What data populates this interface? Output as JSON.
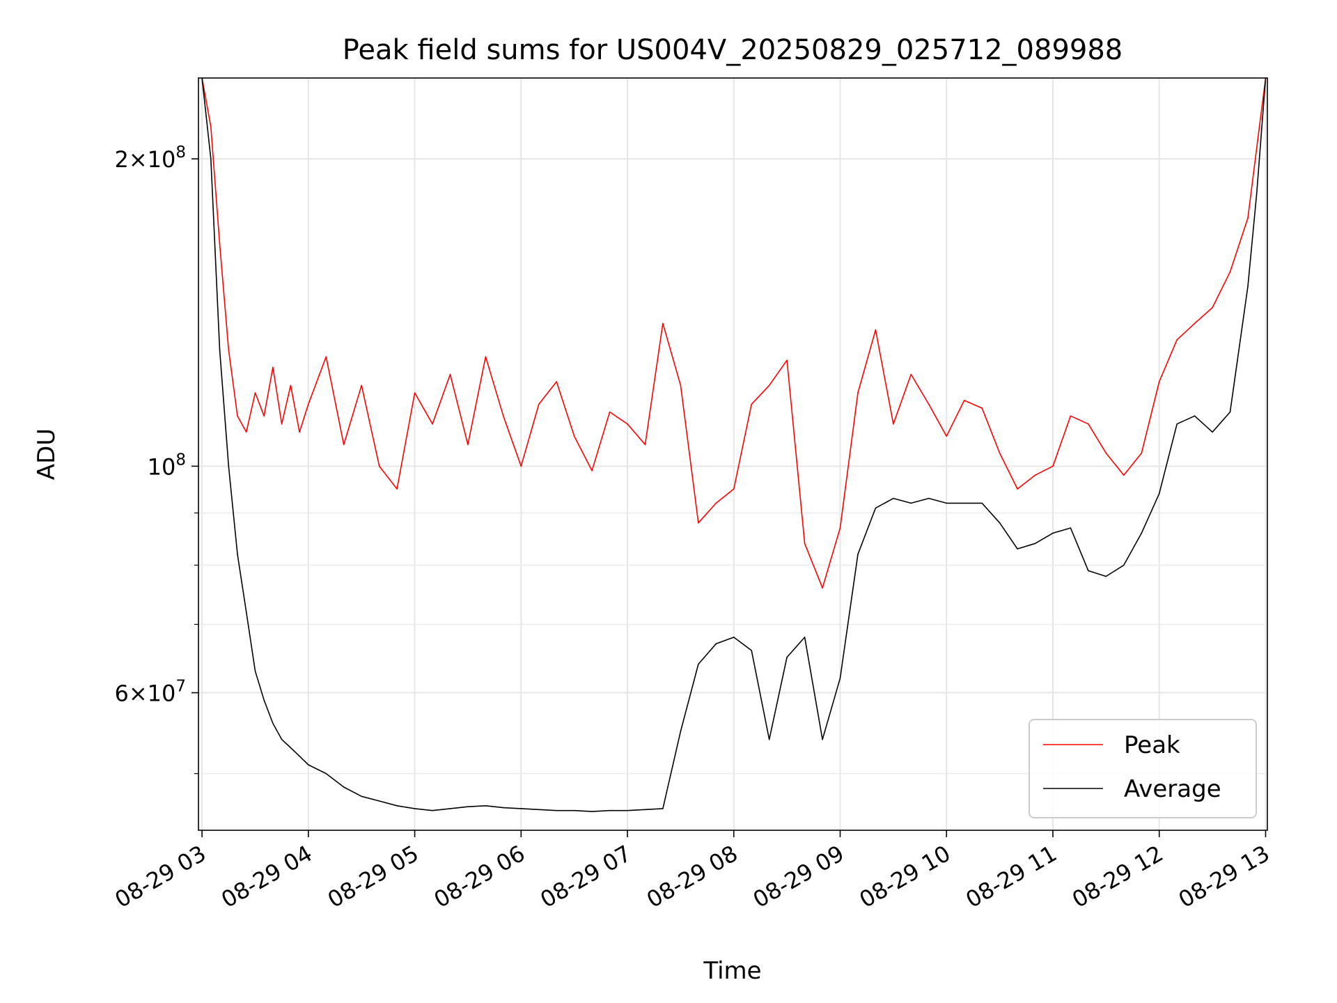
{
  "chart_data": {
    "type": "line",
    "title": "Peak field sums for US004V_20250829_025712_089988",
    "xlabel": "Time",
    "ylabel": "ADU",
    "y_scale": "log",
    "x_range": [
      "2025-08-29 02:58",
      "2025-08-29 13:01"
    ],
    "ylim": [
      44000000,
      240000000
    ],
    "x_ticks": [
      "08-29 03",
      "08-29 04",
      "08-29 05",
      "08-29 06",
      "08-29 07",
      "08-29 08",
      "08-29 09",
      "08-29 10",
      "08-29 11",
      "08-29 12",
      "08-29 13"
    ],
    "y_major_ticks": [
      {
        "value": 200000000,
        "mantissa": "2",
        "base": "10",
        "exponent": "8"
      },
      {
        "value": 100000000,
        "mantissa": "",
        "base": "10",
        "exponent": "8"
      },
      {
        "value": 60000000,
        "mantissa": "6",
        "base": "10",
        "exponent": "7"
      }
    ],
    "y_minor_ticks": [
      50000000,
      70000000,
      80000000,
      90000000
    ],
    "grid": true,
    "legend_position": "lower-right",
    "series": [
      {
        "name": "Peak",
        "color": "#ff0000",
        "x": [
          "2025-08-29 03:00",
          "2025-08-29 03:05",
          "2025-08-29 03:10",
          "2025-08-29 03:15",
          "2025-08-29 03:20",
          "2025-08-29 03:25",
          "2025-08-29 03:30",
          "2025-08-29 03:35",
          "2025-08-29 03:40",
          "2025-08-29 03:45",
          "2025-08-29 03:50",
          "2025-08-29 03:55",
          "2025-08-29 04:00",
          "2025-08-29 04:10",
          "2025-08-29 04:20",
          "2025-08-29 04:30",
          "2025-08-29 04:40",
          "2025-08-29 04:50",
          "2025-08-29 05:00",
          "2025-08-29 05:10",
          "2025-08-29 05:20",
          "2025-08-29 05:30",
          "2025-08-29 05:40",
          "2025-08-29 05:50",
          "2025-08-29 06:00",
          "2025-08-29 06:10",
          "2025-08-29 06:20",
          "2025-08-29 06:30",
          "2025-08-29 06:40",
          "2025-08-29 06:50",
          "2025-08-29 07:00",
          "2025-08-29 07:10",
          "2025-08-29 07:20",
          "2025-08-29 07:30",
          "2025-08-29 07:40",
          "2025-08-29 07:50",
          "2025-08-29 08:00",
          "2025-08-29 08:10",
          "2025-08-29 08:20",
          "2025-08-29 08:30",
          "2025-08-29 08:40",
          "2025-08-29 08:50",
          "2025-08-29 09:00",
          "2025-08-29 09:10",
          "2025-08-29 09:20",
          "2025-08-29 09:30",
          "2025-08-29 09:40",
          "2025-08-29 09:50",
          "2025-08-29 10:00",
          "2025-08-29 10:10",
          "2025-08-29 10:20",
          "2025-08-29 10:30",
          "2025-08-29 10:40",
          "2025-08-29 10:50",
          "2025-08-29 11:00",
          "2025-08-29 11:10",
          "2025-08-29 11:20",
          "2025-08-29 11:30",
          "2025-08-29 11:40",
          "2025-08-29 11:50",
          "2025-08-29 12:00",
          "2025-08-29 12:10",
          "2025-08-29 12:20",
          "2025-08-29 12:30",
          "2025-08-29 12:40",
          "2025-08-29 12:50",
          "2025-08-29 12:55",
          "2025-08-29 13:00"
        ],
        "values": [
          240000000,
          215000000,
          165000000,
          130000000,
          112000000,
          108000000,
          118000000,
          112000000,
          125000000,
          110000000,
          120000000,
          108000000,
          115000000,
          128000000,
          105000000,
          120000000,
          100000000,
          95000000,
          118000000,
          110000000,
          123000000,
          105000000,
          128000000,
          112000000,
          100000000,
          115000000,
          121000000,
          107000000,
          99000000,
          113000000,
          110000000,
          105000000,
          138000000,
          120000000,
          88000000,
          92000000,
          95000000,
          115000000,
          120000000,
          127000000,
          84000000,
          76000000,
          87000000,
          118000000,
          136000000,
          110000000,
          123000000,
          115000000,
          107000000,
          116000000,
          114000000,
          103000000,
          95000000,
          98000000,
          100000000,
          112000000,
          110000000,
          103000000,
          98000000,
          103000000,
          121000000,
          133000000,
          138000000,
          143000000,
          155000000,
          175000000,
          205000000,
          240000000
        ]
      },
      {
        "name": "Average",
        "color": "#000000",
        "x": [
          "2025-08-29 03:00",
          "2025-08-29 03:05",
          "2025-08-29 03:10",
          "2025-08-29 03:15",
          "2025-08-29 03:20",
          "2025-08-29 03:25",
          "2025-08-29 03:30",
          "2025-08-29 03:35",
          "2025-08-29 03:40",
          "2025-08-29 03:45",
          "2025-08-29 03:50",
          "2025-08-29 03:55",
          "2025-08-29 04:00",
          "2025-08-29 04:10",
          "2025-08-29 04:20",
          "2025-08-29 04:30",
          "2025-08-29 04:40",
          "2025-08-29 04:50",
          "2025-08-29 05:00",
          "2025-08-29 05:10",
          "2025-08-29 05:20",
          "2025-08-29 05:30",
          "2025-08-29 05:40",
          "2025-08-29 05:50",
          "2025-08-29 06:00",
          "2025-08-29 06:10",
          "2025-08-29 06:20",
          "2025-08-29 06:30",
          "2025-08-29 06:40",
          "2025-08-29 06:50",
          "2025-08-29 07:00",
          "2025-08-29 07:10",
          "2025-08-29 07:20",
          "2025-08-29 07:30",
          "2025-08-29 07:40",
          "2025-08-29 07:50",
          "2025-08-29 08:00",
          "2025-08-29 08:10",
          "2025-08-29 08:20",
          "2025-08-29 08:30",
          "2025-08-29 08:40",
          "2025-08-29 08:50",
          "2025-08-29 09:00",
          "2025-08-29 09:10",
          "2025-08-29 09:20",
          "2025-08-29 09:30",
          "2025-08-29 09:40",
          "2025-08-29 09:50",
          "2025-08-29 10:00",
          "2025-08-29 10:10",
          "2025-08-29 10:20",
          "2025-08-29 10:30",
          "2025-08-29 10:40",
          "2025-08-29 10:50",
          "2025-08-29 11:00",
          "2025-08-29 11:10",
          "2025-08-29 11:20",
          "2025-08-29 11:30",
          "2025-08-29 11:40",
          "2025-08-29 11:50",
          "2025-08-29 12:00",
          "2025-08-29 12:10",
          "2025-08-29 12:20",
          "2025-08-29 12:30",
          "2025-08-29 12:40",
          "2025-08-29 12:50",
          "2025-08-29 12:55",
          "2025-08-29 13:00"
        ],
        "values": [
          240000000,
          200000000,
          130000000,
          100000000,
          82000000,
          72000000,
          63000000,
          59000000,
          56000000,
          54000000,
          53000000,
          52000000,
          51000000,
          50000000,
          48500000,
          47500000,
          47000000,
          46500000,
          46200000,
          46000000,
          46200000,
          46400000,
          46500000,
          46300000,
          46200000,
          46100000,
          46000000,
          46000000,
          45900000,
          46000000,
          46000000,
          46100000,
          46200000,
          55000000,
          64000000,
          67000000,
          68000000,
          66000000,
          54000000,
          65000000,
          68000000,
          54000000,
          62000000,
          82000000,
          91000000,
          93000000,
          92000000,
          93000000,
          92000000,
          92000000,
          92000000,
          88000000,
          83000000,
          84000000,
          86000000,
          87000000,
          79000000,
          78000000,
          80000000,
          86000000,
          94000000,
          110000000,
          112000000,
          108000000,
          113000000,
          150000000,
          185000000,
          240000000
        ]
      }
    ]
  }
}
